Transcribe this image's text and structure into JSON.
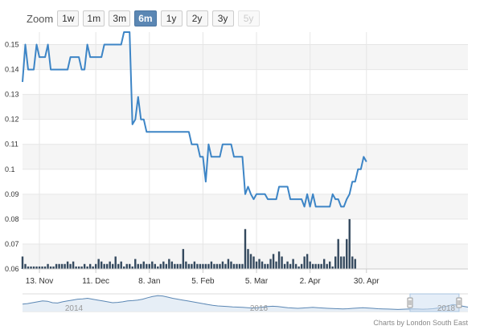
{
  "zoom": {
    "label": "Zoom",
    "buttons": [
      {
        "label": "1w",
        "state": "normal"
      },
      {
        "label": "1m",
        "state": "normal"
      },
      {
        "label": "3m",
        "state": "normal"
      },
      {
        "label": "6m",
        "state": "selected"
      },
      {
        "label": "1y",
        "state": "normal"
      },
      {
        "label": "2y",
        "state": "normal"
      },
      {
        "label": "3y",
        "state": "normal"
      },
      {
        "label": "5y",
        "state": "disabled"
      }
    ]
  },
  "credit": "Charts by London South East",
  "navigator": {
    "year_labels": [
      "2014",
      "2016",
      "2018"
    ],
    "series": [
      0.42,
      0.45,
      0.5,
      0.55,
      0.6,
      0.58,
      0.5,
      0.48,
      0.55,
      0.6,
      0.65,
      0.7,
      0.72,
      0.75,
      0.7,
      0.65,
      0.6,
      0.55,
      0.5,
      0.52,
      0.55,
      0.6,
      0.62,
      0.65,
      0.7,
      0.78,
      0.85,
      0.9,
      0.88,
      0.82,
      0.75,
      0.7,
      0.65,
      0.6,
      0.55,
      0.5,
      0.45,
      0.4,
      0.35,
      0.32,
      0.3,
      0.28,
      0.26,
      0.25,
      0.24,
      0.22,
      0.2,
      0.22,
      0.25,
      0.28,
      0.3,
      0.28,
      0.25,
      0.22,
      0.2,
      0.18,
      0.2,
      0.22,
      0.24,
      0.22,
      0.2,
      0.18,
      0.17,
      0.16,
      0.15,
      0.16,
      0.18,
      0.2,
      0.22,
      0.2,
      0.18,
      0.16,
      0.15,
      0.14,
      0.13,
      0.12,
      0.13,
      0.14,
      0.15,
      0.14,
      0.13,
      0.14,
      0.16,
      0.2,
      0.25,
      0.32,
      0.4,
      0.35,
      0.3,
      0.25
    ],
    "selected_range": [
      0.87,
      0.98
    ]
  },
  "colors": {
    "line": "#3d85c6",
    "volume": "#34495e",
    "grid": "#e6e6e6",
    "band": "#f5f5f5",
    "navigator_line": "#5b87b4",
    "navigator_fill": "#e6eef6",
    "navigator_mask": "#cfe0f2"
  },
  "chart_data": {
    "type": "line",
    "title": "",
    "xlabel": "",
    "ylabel": "",
    "ylim": [
      0.06,
      0.155
    ],
    "yticks": [
      0.06,
      0.07,
      0.08,
      0.09,
      0.1,
      0.11,
      0.12,
      0.13,
      0.14,
      0.15
    ],
    "ytick_labels": [
      "0.06",
      "0.07",
      "0.08",
      "0.09",
      "0.1",
      "0.11",
      "0.12",
      "0.13",
      "0.14",
      "0.15"
    ],
    "xlim": [
      0,
      158
    ],
    "xticks": [
      {
        "x": 6,
        "label": "13. Nov"
      },
      {
        "x": 26,
        "label": "11. Dec"
      },
      {
        "x": 45,
        "label": "8. Jan"
      },
      {
        "x": 64,
        "label": "5. Feb"
      },
      {
        "x": 83,
        "label": "5. Mar"
      },
      {
        "x": 102,
        "label": "2. Apr"
      },
      {
        "x": 122,
        "label": "30. Apr"
      }
    ],
    "series": [
      {
        "kind": "price",
        "values": [
          0.135,
          0.15,
          0.14,
          0.14,
          0.14,
          0.15,
          0.145,
          0.145,
          0.145,
          0.15,
          0.14,
          0.14,
          0.14,
          0.14,
          0.14,
          0.14,
          0.14,
          0.145,
          0.145,
          0.145,
          0.145,
          0.14,
          0.14,
          0.15,
          0.145,
          0.145,
          0.145,
          0.145,
          0.145,
          0.15,
          0.15,
          0.15,
          0.15,
          0.15,
          0.15,
          0.15,
          0.155,
          0.155,
          0.155,
          0.118,
          0.12,
          0.129,
          0.12,
          0.12,
          0.115,
          0.115,
          0.115,
          0.115,
          0.115,
          0.115,
          0.115,
          0.115,
          0.115,
          0.115,
          0.115,
          0.115,
          0.115,
          0.115,
          0.115,
          0.115,
          0.11,
          0.11,
          0.11,
          0.105,
          0.105,
          0.095,
          0.11,
          0.105,
          0.105,
          0.105,
          0.105,
          0.11,
          0.11,
          0.11,
          0.11,
          0.105,
          0.105,
          0.105,
          0.105,
          0.09,
          0.093,
          0.09,
          0.088,
          0.09,
          0.09,
          0.09,
          0.09,
          0.088,
          0.088,
          0.088,
          0.088,
          0.093,
          0.093,
          0.093,
          0.093,
          0.088,
          0.088,
          0.088,
          0.088,
          0.088,
          0.085,
          0.09,
          0.085,
          0.09,
          0.085,
          0.085,
          0.085,
          0.085,
          0.085,
          0.085,
          0.09,
          0.088,
          0.088,
          0.085,
          0.085,
          0.088,
          0.09,
          0.095,
          0.095,
          0.1,
          0.1,
          0.105,
          0.103
        ]
      },
      {
        "kind": "volume",
        "values": [
          0.065,
          0.062,
          0.061,
          0.061,
          0.061,
          0.061,
          0.061,
          0.061,
          0.061,
          0.062,
          0.061,
          0.061,
          0.062,
          0.062,
          0.062,
          0.062,
          0.063,
          0.062,
          0.063,
          0.061,
          0.061,
          0.061,
          0.062,
          0.061,
          0.062,
          0.061,
          0.062,
          0.064,
          0.063,
          0.062,
          0.062,
          0.063,
          0.062,
          0.065,
          0.062,
          0.063,
          0.061,
          0.062,
          0.062,
          0.061,
          0.064,
          0.062,
          0.062,
          0.063,
          0.062,
          0.062,
          0.063,
          0.062,
          0.061,
          0.062,
          0.063,
          0.062,
          0.064,
          0.063,
          0.062,
          0.062,
          0.062,
          0.068,
          0.063,
          0.062,
          0.062,
          0.063,
          0.062,
          0.062,
          0.062,
          0.062,
          0.062,
          0.063,
          0.062,
          0.062,
          0.062,
          0.063,
          0.062,
          0.064,
          0.063,
          0.062,
          0.062,
          0.062,
          0.062,
          0.076,
          0.068,
          0.066,
          0.065,
          0.063,
          0.064,
          0.063,
          0.062,
          0.062,
          0.064,
          0.066,
          0.063,
          0.067,
          0.065,
          0.062,
          0.063,
          0.062,
          0.064,
          0.062,
          0.061,
          0.062,
          0.065,
          0.066,
          0.063,
          0.062,
          0.062,
          0.062,
          0.062,
          0.064,
          0.062,
          0.063,
          0.061,
          0.065,
          0.072,
          0.065,
          0.065,
          0.072,
          0.08,
          0.065,
          0.064
        ]
      }
    ],
    "grid": true,
    "legend": "none"
  }
}
